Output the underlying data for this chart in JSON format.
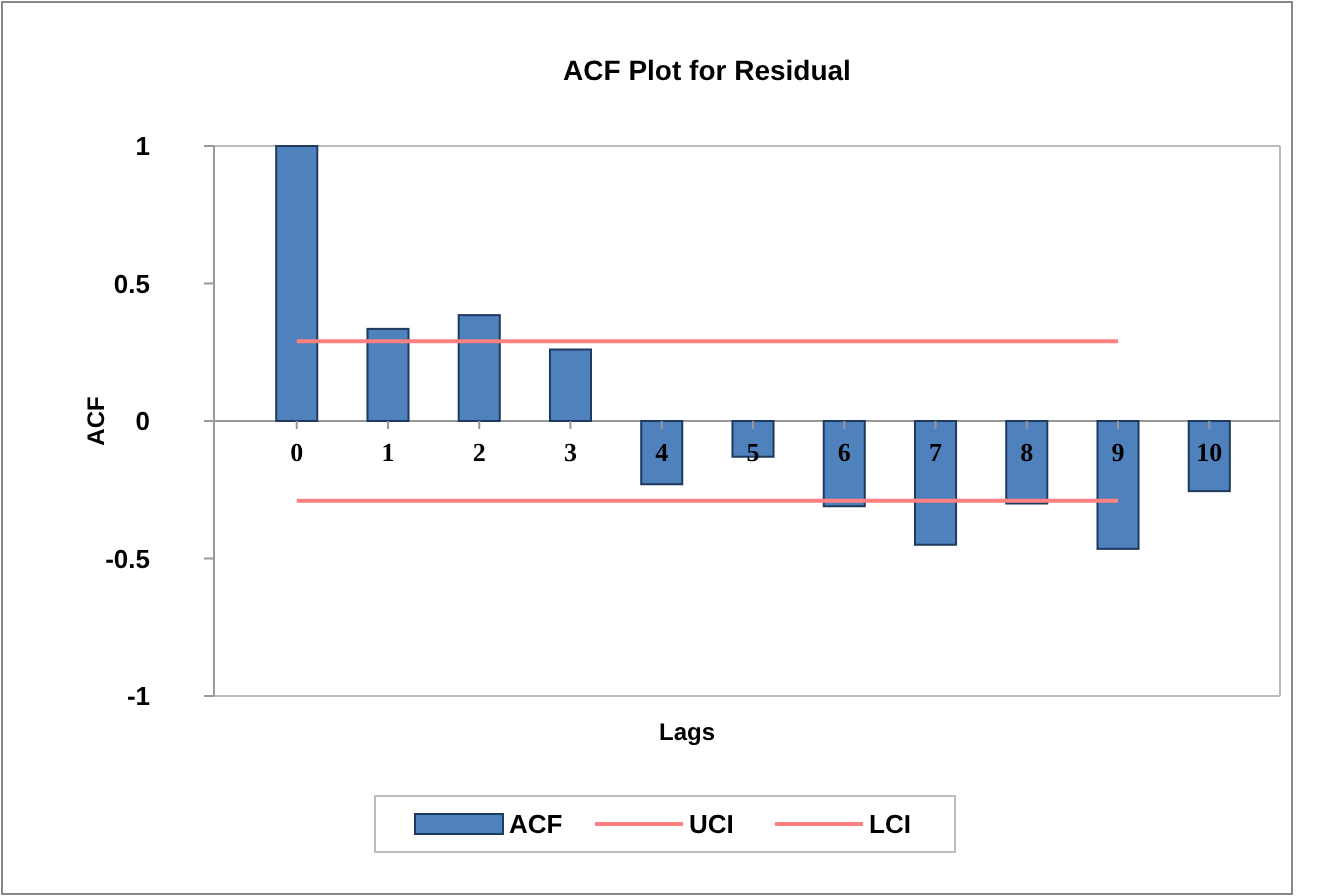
{
  "chart_data": {
    "type": "bar",
    "title": "ACF Plot for Residual",
    "xlabel": "Lags",
    "ylabel": "ACF",
    "categories": [
      "0",
      "1",
      "2",
      "3",
      "4",
      "5",
      "6",
      "7",
      "8",
      "9",
      "10"
    ],
    "series": [
      {
        "name": "ACF",
        "color": "#4f81bd",
        "values": [
          1,
          0.335,
          0.385,
          0.26,
          -0.23,
          -0.13,
          -0.31,
          -0.45,
          -0.3,
          -0.465,
          -0.255
        ]
      },
      {
        "name": "UCI",
        "type": "line",
        "color": "#ff8080",
        "values": [
          0.29,
          0.29,
          0.29,
          0.29,
          0.29,
          0.29,
          0.29,
          0.29,
          0.29,
          0.29,
          null
        ]
      },
      {
        "name": "LCI",
        "type": "line",
        "color": "#ff8080",
        "values": [
          -0.29,
          -0.29,
          -0.29,
          -0.29,
          -0.29,
          -0.29,
          -0.29,
          -0.29,
          -0.29,
          -0.29,
          null
        ]
      }
    ],
    "ylim": [
      -1,
      1
    ],
    "yticks": [
      -1,
      -0.5,
      0,
      0.5,
      1
    ],
    "grid": false,
    "legend": "bottom"
  }
}
